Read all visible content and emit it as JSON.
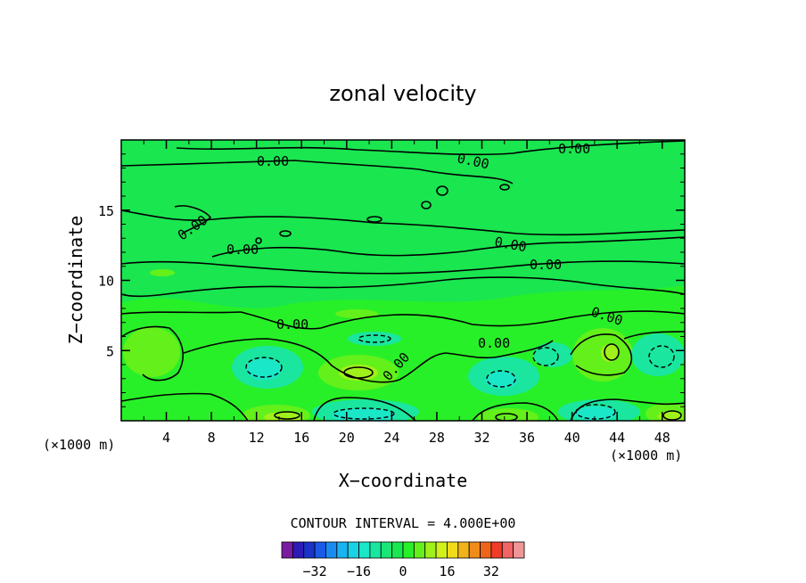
{
  "chart_data": {
    "type": "heatmap",
    "title": "zonal velocity",
    "xlabel": "X−coordinate",
    "ylabel": "Z−coordinate",
    "x_unit_left": "(×1000 m)",
    "x_unit_right": "(×1000 m)",
    "xlim": [
      0,
      50
    ],
    "ylim": [
      0,
      20
    ],
    "x_ticks": [
      4,
      8,
      12,
      16,
      20,
      24,
      28,
      32,
      36,
      40,
      44,
      48
    ],
    "y_ticks": [
      5,
      10,
      15
    ],
    "contour_labels": [
      "0.00",
      "0.00",
      "0.00",
      "0.00",
      "0.00",
      "0.00",
      "0.00",
      "0.00",
      "0.00",
      "0.00",
      "0.00"
    ],
    "contour_interval_text": "CONTOUR INTERVAL =  4.000E+00",
    "colorbar": {
      "ticks": [
        "−32",
        "−16",
        "0",
        "16",
        "32"
      ],
      "colors": [
        "#7a1aa0",
        "#2e1ab4",
        "#1a32c8",
        "#1a5ae6",
        "#1a8cf0",
        "#1ab4f0",
        "#1ad2e6",
        "#1ae6c8",
        "#1ae6a0",
        "#1ae678",
        "#1ae650",
        "#28f028",
        "#64f01a",
        "#a0f01a",
        "#d2f01a",
        "#f0dc1a",
        "#f0b41a",
        "#f08c1a",
        "#f0641a",
        "#f03c28",
        "#f06464",
        "#f09696"
      ]
    }
  }
}
